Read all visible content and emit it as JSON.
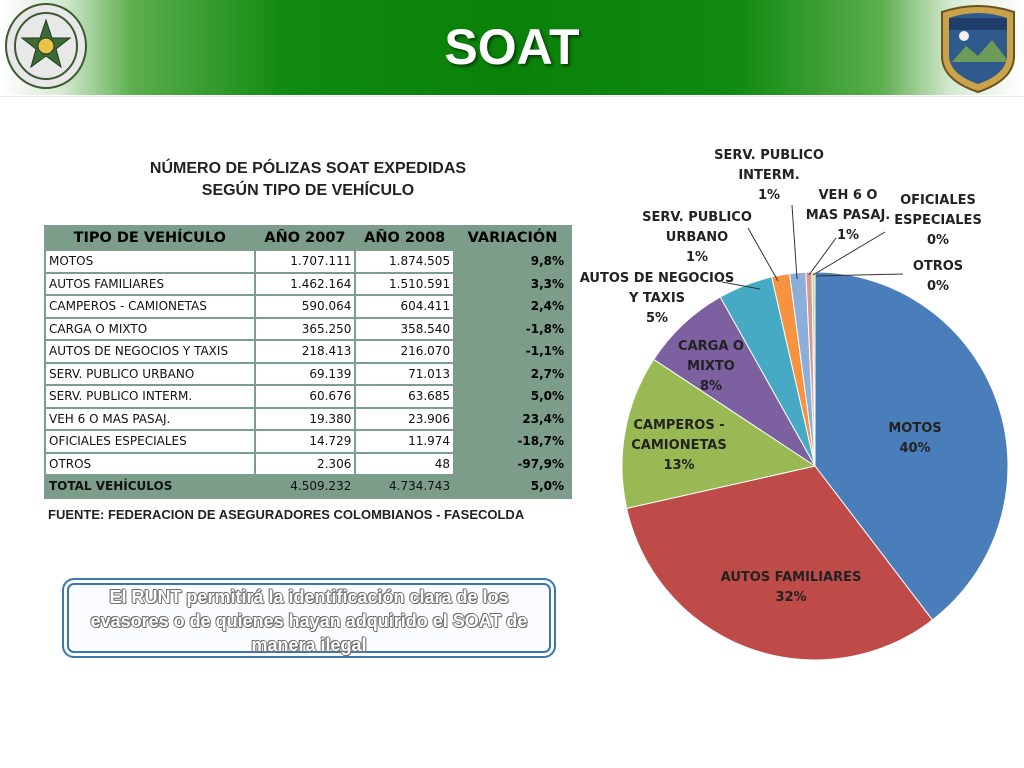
{
  "header": {
    "title": "SOAT",
    "left_emblem": {
      "icon": "police-seal-icon",
      "text": "REPÚBLICA DE COLOMBIA · POLICÍA NACIONAL · DIOS Y PATRIA"
    },
    "right_emblem": {
      "icon": "police-shield-icon",
      "text": "POLICIA NACIONAL"
    }
  },
  "table": {
    "title_line1": "NÚMERO DE PÓLIZAS SOAT EXPEDIDAS",
    "title_line2": "SEGÚN TIPO DE VEHÍCULO",
    "columns": [
      "TIPO DE VEHÍCULO",
      "AÑO 2007",
      "AÑO 2008",
      "VARIACIÓN"
    ],
    "rows": [
      [
        "MOTOS",
        "1.707.111",
        "1.874.505",
        "9,8%"
      ],
      [
        "AUTOS FAMILIARES",
        "1.462.164",
        "1.510.591",
        "3,3%"
      ],
      [
        "CAMPEROS - CAMIONETAS",
        "590.064",
        "604.411",
        "2,4%"
      ],
      [
        "CARGA O MIXTO",
        "365.250",
        "358.540",
        "-1,8%"
      ],
      [
        "AUTOS DE NEGOCIOS Y TAXIS",
        "218.413",
        "216.070",
        "-1,1%"
      ],
      [
        "SERV. PUBLICO URBANO",
        "69.139",
        "71.013",
        "2,7%"
      ],
      [
        "SERV. PUBLICO INTERM.",
        "60.676",
        "63.685",
        "5,0%"
      ],
      [
        "VEH 6 O MAS PASAJ.",
        "19.380",
        "23.906",
        "23,4%"
      ],
      [
        "OFICIALES ESPECIALES",
        "14.729",
        "11.974",
        "-18,7%"
      ],
      [
        "OTROS",
        "2.306",
        "48",
        "-97,9%"
      ]
    ],
    "total": [
      "TOTAL VEHÍCULOS",
      "4.509.232",
      "4.734.743",
      "5,0%"
    ],
    "source": "FUENTE: FEDERACION DE ASEGURADORES COLOMBIANOS - FASECOLDA"
  },
  "note": {
    "text": "El RUNT permitirá la identificación clara de los evasores o de quienes hayan adquirido el SOAT de manera ilegal"
  },
  "colors": {
    "header_green": "#0a820a",
    "table_header": "#7c9d8a",
    "note_border": "#3a78b0"
  },
  "chart_data": {
    "type": "pie",
    "title": "",
    "slices": [
      {
        "label_lines": [
          "MOTOS"
        ],
        "percent_label": "40%",
        "value": 1874505,
        "color": "#4a7ebb"
      },
      {
        "label_lines": [
          "AUTOS FAMILIARES"
        ],
        "percent_label": "32%",
        "value": 1510591,
        "color": "#be4b48"
      },
      {
        "label_lines": [
          "CAMPEROS -",
          "CAMIONETAS"
        ],
        "percent_label": "13%",
        "value": 604411,
        "color": "#98b954"
      },
      {
        "label_lines": [
          "CARGA O",
          "MIXTO"
        ],
        "percent_label": "8%",
        "value": 358540,
        "color": "#7d60a0"
      },
      {
        "label_lines": [
          "AUTOS DE NEGOCIOS",
          "Y TAXIS"
        ],
        "percent_label": "5%",
        "value": 216070,
        "color": "#46aac5"
      },
      {
        "label_lines": [
          "SERV. PUBLICO",
          "URBANO"
        ],
        "percent_label": "1%",
        "value": 71013,
        "color": "#f69240"
      },
      {
        "label_lines": [
          "SERV. PUBLICO",
          "INTERM."
        ],
        "percent_label": "1%",
        "value": 63685,
        "color": "#8cafd9"
      },
      {
        "label_lines": [
          "VEH 6 O",
          "MAS PASAJ."
        ],
        "percent_label": "1%",
        "value": 23906,
        "color": "#d99694"
      },
      {
        "label_lines": [
          "OFICIALES",
          "ESPECIALES"
        ],
        "percent_label": "0%",
        "value": 11974,
        "color": "#c3d69b"
      },
      {
        "label_lines": [
          "OTROS"
        ],
        "percent_label": "0%",
        "value": 48,
        "color": "#b3a2c7"
      }
    ]
  }
}
